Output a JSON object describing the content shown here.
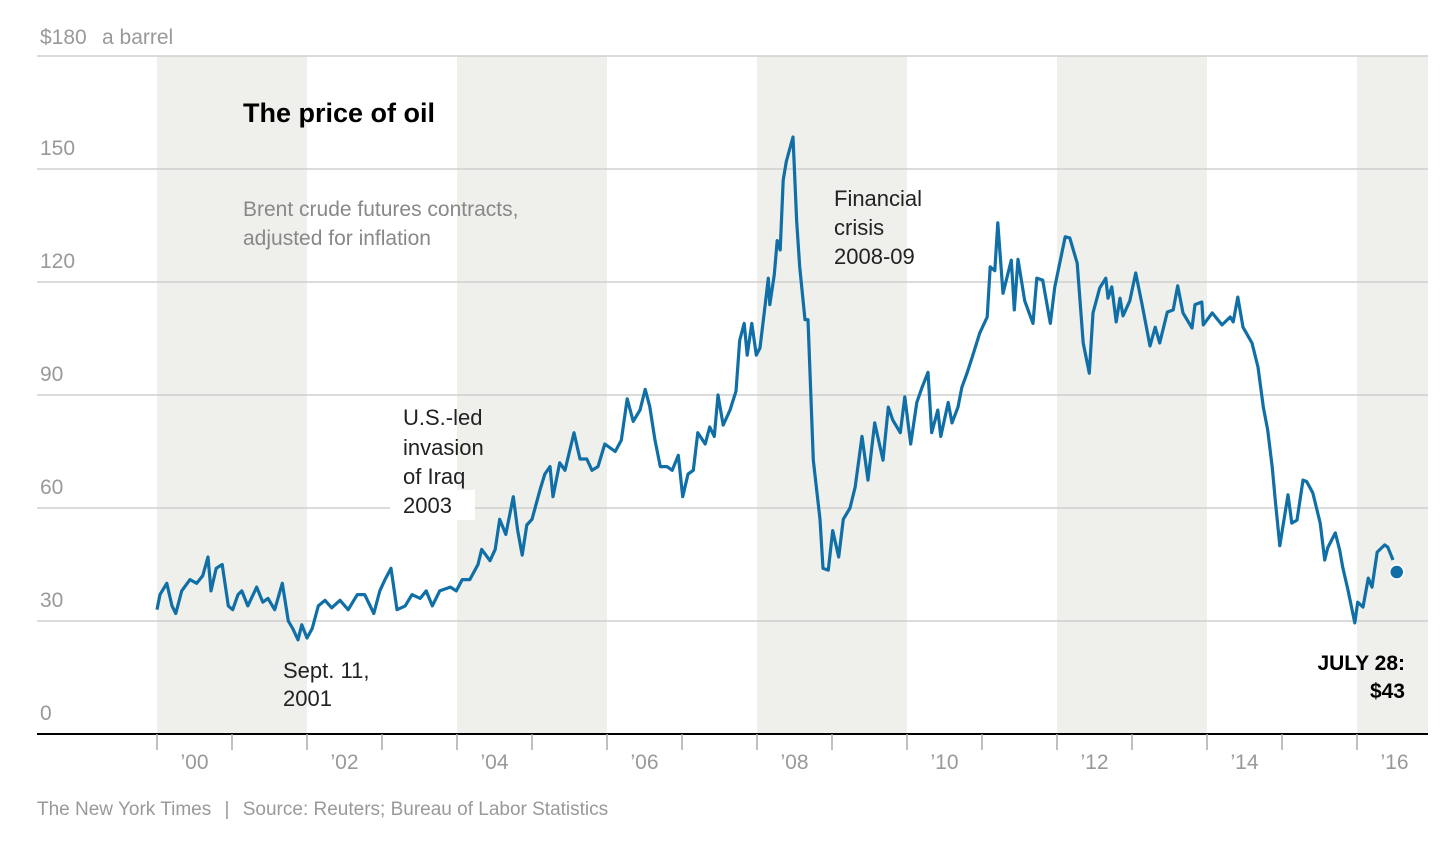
{
  "chart_data": {
    "type": "line",
    "title": "The price of oil",
    "subtitle": [
      "Brent crude futures contracts,",
      "adjusted for inflation"
    ],
    "ylabel_unit": "a barrel",
    "ylim": [
      0,
      180
    ],
    "xlim": [
      1999.8,
      2016.95
    ],
    "grid": true,
    "yticks": [
      {
        "value": 180,
        "label": "$180"
      },
      {
        "value": 150,
        "label": "150"
      },
      {
        "value": 120,
        "label": "120"
      },
      {
        "value": 90,
        "label": "90"
      },
      {
        "value": 60,
        "label": "60"
      },
      {
        "value": 30,
        "label": "30"
      },
      {
        "value": 0,
        "label": "0"
      }
    ],
    "xticks": [
      {
        "year": 2000,
        "label": "’00"
      },
      {
        "year": 2002,
        "label": "’02"
      },
      {
        "year": 2004,
        "label": "’04"
      },
      {
        "year": 2006,
        "label": "’06"
      },
      {
        "year": 2008,
        "label": "’08"
      },
      {
        "year": 2010,
        "label": "’10"
      },
      {
        "year": 2012,
        "label": "’12"
      },
      {
        "year": 2014,
        "label": "’14"
      },
      {
        "year": 2016,
        "label": "’16"
      }
    ],
    "shaded_years": [
      [
        2000,
        2002
      ],
      [
        2004,
        2006
      ],
      [
        2008,
        2010
      ],
      [
        2012,
        2014
      ],
      [
        2016,
        2016.95
      ]
    ],
    "series": [
      {
        "name": "Brent crude (inflation-adjusted)",
        "color": "#0f6fa6",
        "points": [
          [
            2000.0,
            33
          ],
          [
            2000.04,
            37
          ],
          [
            2000.13,
            40
          ],
          [
            2000.2,
            34
          ],
          [
            2000.25,
            32
          ],
          [
            2000.33,
            38
          ],
          [
            2000.44,
            41
          ],
          [
            2000.53,
            40
          ],
          [
            2000.61,
            42
          ],
          [
            2000.68,
            47
          ],
          [
            2000.72,
            38
          ],
          [
            2000.79,
            44
          ],
          [
            2000.87,
            45
          ],
          [
            2000.95,
            34
          ],
          [
            2001.01,
            33
          ],
          [
            2001.08,
            37
          ],
          [
            2001.13,
            38
          ],
          [
            2001.21,
            34
          ],
          [
            2001.33,
            39
          ],
          [
            2001.41,
            35
          ],
          [
            2001.48,
            36
          ],
          [
            2001.57,
            33
          ],
          [
            2001.67,
            40
          ],
          [
            2001.75,
            30
          ],
          [
            2001.81,
            28
          ],
          [
            2001.88,
            25
          ],
          [
            2001.93,
            29
          ],
          [
            2002.0,
            25.5
          ],
          [
            2002.07,
            28
          ],
          [
            2002.15,
            34
          ],
          [
            2002.24,
            35.5
          ],
          [
            2002.33,
            33.5
          ],
          [
            2002.44,
            35.5
          ],
          [
            2002.55,
            33
          ],
          [
            2002.67,
            37
          ],
          [
            2002.77,
            37
          ],
          [
            2002.89,
            32
          ],
          [
            2002.97,
            38
          ],
          [
            2003.04,
            41
          ],
          [
            2003.12,
            44
          ],
          [
            2003.2,
            33
          ],
          [
            2003.31,
            34
          ],
          [
            2003.4,
            37
          ],
          [
            2003.51,
            36
          ],
          [
            2003.59,
            38
          ],
          [
            2003.67,
            34
          ],
          [
            2003.77,
            38
          ],
          [
            2003.91,
            39
          ],
          [
            2003.99,
            38
          ],
          [
            2004.07,
            41
          ],
          [
            2004.17,
            41
          ],
          [
            2004.28,
            45
          ],
          [
            2004.33,
            49
          ],
          [
            2004.44,
            46
          ],
          [
            2004.51,
            49
          ],
          [
            2004.57,
            57
          ],
          [
            2004.65,
            53
          ],
          [
            2004.75,
            63
          ],
          [
            2004.81,
            54
          ],
          [
            2004.87,
            47.5
          ],
          [
            2004.93,
            55.5
          ],
          [
            2005.0,
            57
          ],
          [
            2005.11,
            65
          ],
          [
            2005.17,
            69
          ],
          [
            2005.24,
            71
          ],
          [
            2005.28,
            63
          ],
          [
            2005.37,
            72
          ],
          [
            2005.44,
            70
          ],
          [
            2005.56,
            80
          ],
          [
            2005.64,
            73
          ],
          [
            2005.73,
            73
          ],
          [
            2005.8,
            70
          ],
          [
            2005.88,
            71
          ],
          [
            2005.97,
            77
          ],
          [
            2006.11,
            75
          ],
          [
            2006.19,
            78
          ],
          [
            2006.27,
            89
          ],
          [
            2006.35,
            83
          ],
          [
            2006.44,
            86
          ],
          [
            2006.51,
            91.5
          ],
          [
            2006.57,
            87
          ],
          [
            2006.64,
            78
          ],
          [
            2006.71,
            71
          ],
          [
            2006.8,
            71
          ],
          [
            2006.87,
            70
          ],
          [
            2006.95,
            74
          ],
          [
            2007.01,
            63
          ],
          [
            2007.08,
            69
          ],
          [
            2007.15,
            70
          ],
          [
            2007.21,
            80
          ],
          [
            2007.31,
            77
          ],
          [
            2007.37,
            81.5
          ],
          [
            2007.43,
            79
          ],
          [
            2007.48,
            90
          ],
          [
            2007.55,
            82
          ],
          [
            2007.64,
            86
          ],
          [
            2007.72,
            91
          ],
          [
            2007.77,
            104.5
          ],
          [
            2007.83,
            109
          ],
          [
            2007.87,
            100.6
          ],
          [
            2007.93,
            109
          ],
          [
            2007.99,
            100.6
          ],
          [
            2008.04,
            102.5
          ],
          [
            2008.11,
            114
          ],
          [
            2008.15,
            121
          ],
          [
            2008.17,
            114
          ],
          [
            2008.23,
            122
          ],
          [
            2008.27,
            131
          ],
          [
            2008.31,
            128.5
          ],
          [
            2008.35,
            147
          ],
          [
            2008.39,
            152
          ],
          [
            2008.48,
            158.5
          ],
          [
            2008.53,
            136
          ],
          [
            2008.57,
            124
          ],
          [
            2008.64,
            110
          ],
          [
            2008.68,
            110
          ],
          [
            2008.75,
            72.7
          ],
          [
            2008.84,
            57
          ],
          [
            2008.88,
            44
          ],
          [
            2008.95,
            43.5
          ],
          [
            2009.01,
            54
          ],
          [
            2009.09,
            47
          ],
          [
            2009.15,
            57
          ],
          [
            2009.24,
            60
          ],
          [
            2009.31,
            65.6
          ],
          [
            2009.4,
            79
          ],
          [
            2009.48,
            67.4
          ],
          [
            2009.57,
            82.6
          ],
          [
            2009.68,
            72.7
          ],
          [
            2009.75,
            86.8
          ],
          [
            2009.81,
            83.4
          ],
          [
            2009.91,
            80
          ],
          [
            2009.97,
            89.5
          ],
          [
            2010.05,
            77
          ],
          [
            2010.13,
            88
          ],
          [
            2010.2,
            92
          ],
          [
            2010.28,
            96
          ],
          [
            2010.33,
            80
          ],
          [
            2010.41,
            86
          ],
          [
            2010.45,
            79
          ],
          [
            2010.55,
            88
          ],
          [
            2010.6,
            82.6
          ],
          [
            2010.68,
            86.8
          ],
          [
            2010.73,
            92
          ],
          [
            2010.8,
            95.8
          ],
          [
            2010.87,
            100
          ],
          [
            2010.97,
            106.5
          ],
          [
            2011.07,
            110.7
          ],
          [
            2011.11,
            124
          ],
          [
            2011.17,
            123
          ],
          [
            2011.21,
            135.7
          ],
          [
            2011.28,
            117
          ],
          [
            2011.39,
            125.8
          ],
          [
            2011.43,
            112.6
          ],
          [
            2011.48,
            126
          ],
          [
            2011.57,
            115
          ],
          [
            2011.68,
            109
          ],
          [
            2011.73,
            121
          ],
          [
            2011.81,
            120.5
          ],
          [
            2011.91,
            109
          ],
          [
            2011.97,
            118.7
          ],
          [
            2012.11,
            132
          ],
          [
            2012.17,
            131.7
          ],
          [
            2012.27,
            125
          ],
          [
            2012.35,
            103.8
          ],
          [
            2012.43,
            95.8
          ],
          [
            2012.48,
            111.8
          ],
          [
            2012.57,
            118.4
          ],
          [
            2012.65,
            121
          ],
          [
            2012.68,
            115.7
          ],
          [
            2012.73,
            118.7
          ],
          [
            2012.79,
            109.4
          ],
          [
            2012.84,
            115.7
          ],
          [
            2012.88,
            111
          ],
          [
            2012.97,
            115
          ],
          [
            2013.05,
            122.4
          ],
          [
            2013.13,
            114.4
          ],
          [
            2013.24,
            103
          ],
          [
            2013.31,
            108
          ],
          [
            2013.37,
            103.8
          ],
          [
            2013.47,
            112
          ],
          [
            2013.55,
            112.6
          ],
          [
            2013.61,
            119
          ],
          [
            2013.68,
            111.8
          ],
          [
            2013.8,
            107.8
          ],
          [
            2013.84,
            114
          ],
          [
            2013.93,
            114.7
          ],
          [
            2013.95,
            108.6
          ],
          [
            2014.07,
            111.8
          ],
          [
            2014.2,
            108.6
          ],
          [
            2014.31,
            110.7
          ],
          [
            2014.35,
            109.4
          ],
          [
            2014.41,
            116
          ],
          [
            2014.48,
            108
          ],
          [
            2014.6,
            103.8
          ],
          [
            2014.68,
            97.4
          ],
          [
            2014.75,
            86.8
          ],
          [
            2014.81,
            80.7
          ],
          [
            2014.87,
            70.9
          ],
          [
            2014.91,
            62
          ],
          [
            2014.97,
            50
          ],
          [
            2015.08,
            63.5
          ],
          [
            2015.13,
            56
          ],
          [
            2015.2,
            56.8
          ],
          [
            2015.28,
            67.4
          ],
          [
            2015.33,
            67
          ],
          [
            2015.41,
            64
          ],
          [
            2015.51,
            56
          ],
          [
            2015.57,
            46.2
          ],
          [
            2015.61,
            49.4
          ],
          [
            2015.71,
            53.4
          ],
          [
            2015.77,
            48.8
          ],
          [
            2015.81,
            44.3
          ],
          [
            2015.88,
            38.2
          ],
          [
            2015.97,
            29.5
          ],
          [
            2016.01,
            35
          ],
          [
            2016.08,
            33.7
          ],
          [
            2016.15,
            41.4
          ],
          [
            2016.2,
            39
          ],
          [
            2016.27,
            48.3
          ],
          [
            2016.37,
            50.2
          ],
          [
            2016.41,
            49.6
          ],
          [
            2016.48,
            46.2
          ]
        ]
      }
    ],
    "endpoint": {
      "year": 2016.53,
      "value": 43,
      "label_line1": "JULY 28:",
      "label_line2": "$43"
    },
    "annotations": {
      "sept11": [
        "Sept. 11,",
        "2001"
      ],
      "iraq": [
        "U.S.-led",
        "invasion",
        "of Iraq",
        "2003"
      ],
      "crisis": [
        "Financial",
        "crisis",
        "2008-09"
      ]
    }
  },
  "footer": {
    "publisher": "The New York Times",
    "separator": "|",
    "source": "Source: Reuters; Bureau of Labor Statistics"
  }
}
